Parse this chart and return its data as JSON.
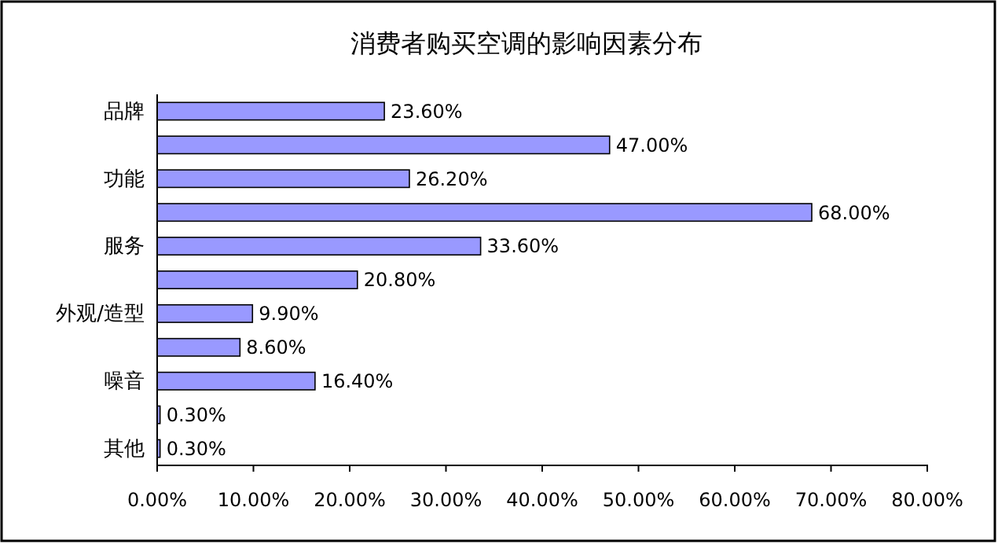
{
  "chart_data": {
    "type": "bar",
    "orientation": "horizontal",
    "title": "消费者购买空调的影响因素分布",
    "categories": [
      "品牌",
      null,
      "功能",
      null,
      "服务",
      null,
      "外观/造型",
      null,
      "噪音",
      null,
      "其他"
    ],
    "values": [
      23.6,
      47.0,
      26.2,
      68.0,
      33.6,
      20.8,
      9.9,
      8.6,
      16.4,
      0.3,
      0.3
    ],
    "value_labels": [
      "23.60%",
      "47.00%",
      "26.20%",
      "68.00%",
      "33.60%",
      "20.80%",
      "9.90%",
      "8.60%",
      "16.40%",
      "0.30%",
      "0.30%"
    ],
    "color": "#9999ff",
    "xlim": [
      0,
      80
    ],
    "xticks": [
      {
        "value": 0,
        "label": "0.00%"
      },
      {
        "value": 10,
        "label": "10.00%"
      },
      {
        "value": 20,
        "label": "20.00%"
      },
      {
        "value": 30,
        "label": "30.00%"
      },
      {
        "value": 40,
        "label": "40.00%"
      },
      {
        "value": 50,
        "label": "50.00%"
      },
      {
        "value": 60,
        "label": "60.00%"
      },
      {
        "value": 70,
        "label": "70.00%"
      },
      {
        "value": 80,
        "label": "80.00%"
      }
    ],
    "grid": false
  }
}
